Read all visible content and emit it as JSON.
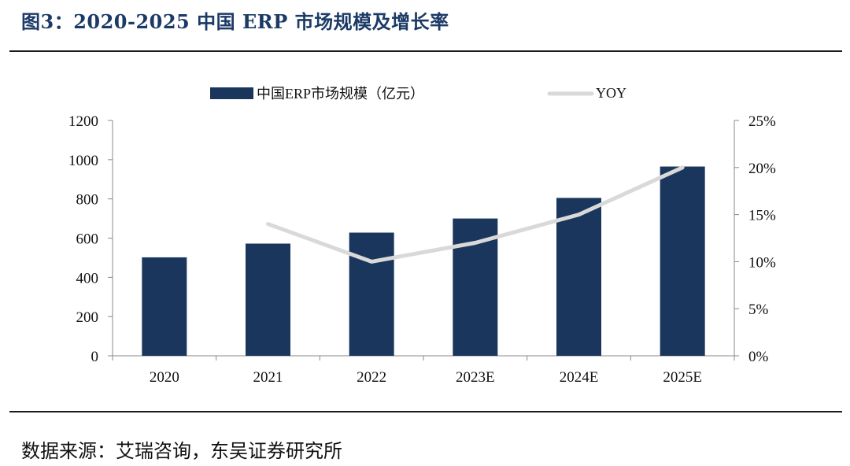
{
  "figure": {
    "title": "图3：2020-2025 中国 ERP 市场规模及增长率",
    "source": "数据来源：艾瑞咨询，东吴证券研究所"
  },
  "colors": {
    "title": "#1c3a66",
    "bar": "#1b365d",
    "line": "#d9d9d9",
    "axis": "#888888"
  },
  "chart_data": {
    "type": "bar",
    "categories": [
      "2020",
      "2021",
      "2022",
      "2023E",
      "2024E",
      "2025E"
    ],
    "series": [
      {
        "name": "中国ERP市场规模（亿元）",
        "type": "bar",
        "axis": "left",
        "values": [
          502,
          572,
          628,
          700,
          805,
          965
        ]
      },
      {
        "name": "YOY",
        "type": "line",
        "axis": "right",
        "values": [
          null,
          14,
          10,
          12,
          15,
          20
        ]
      }
    ],
    "left_axis": {
      "min": 0,
      "max": 1200,
      "ticks": [
        0,
        200,
        400,
        600,
        800,
        1000,
        1200
      ]
    },
    "right_axis": {
      "min": 0,
      "max": 25,
      "ticks": [
        0,
        5,
        10,
        15,
        20,
        25
      ],
      "tick_labels": [
        "0%",
        "5%",
        "10%",
        "15%",
        "20%",
        "25%"
      ]
    },
    "grid": false,
    "legend_position": "top"
  }
}
